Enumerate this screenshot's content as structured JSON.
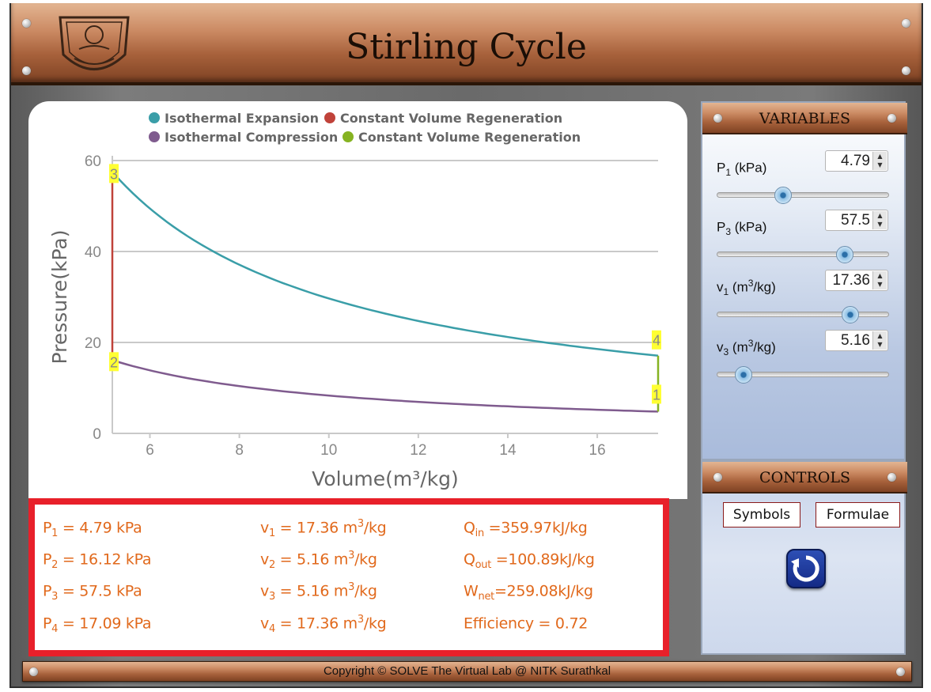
{
  "header": {
    "title": "Stirling Cycle"
  },
  "footer": {
    "copyright": "Copyright © SOLVE The Virtual Lab @ NITK Surathkal"
  },
  "variables_panel": {
    "title": "VARIABLES",
    "items": [
      {
        "sym": "P",
        "sub": "1",
        "unit_pre": " (kPa)",
        "unit_sup": "",
        "unit_post": "",
        "value": "4.79",
        "level": 0.38
      },
      {
        "sym": "P",
        "sub": "3",
        "unit_pre": " (kPa)",
        "unit_sup": "",
        "unit_post": "",
        "value": "57.5",
        "level": 0.74
      },
      {
        "sym": "v",
        "sub": "1",
        "unit_pre": " (m",
        "unit_sup": "3",
        "unit_post": "/kg)",
        "value": "17.36",
        "level": 0.77
      },
      {
        "sym": "v",
        "sub": "3",
        "unit_pre": " (m",
        "unit_sup": "3",
        "unit_post": "/kg)",
        "value": "5.16",
        "level": 0.15
      }
    ]
  },
  "controls_panel": {
    "title": "CONTROLS",
    "symbols_label": "Symbols",
    "formulae_label": "Formulae"
  },
  "results": [
    {
      "sym": "P",
      "sub": "1",
      "text": " = 4.79 kPa",
      "sup": "",
      "post": ""
    },
    {
      "sym": "P",
      "sub": "2",
      "text": " = 16.12 kPa",
      "sup": "",
      "post": ""
    },
    {
      "sym": "P",
      "sub": "3",
      "text": " = 57.5 kPa",
      "sup": "",
      "post": ""
    },
    {
      "sym": "P",
      "sub": "4",
      "text": " = 17.09 kPa",
      "sup": "",
      "post": ""
    },
    {
      "sym": "v",
      "sub": "1",
      "text": " = 17.36 m",
      "sup": "3",
      "post": "/kg"
    },
    {
      "sym": "v",
      "sub": "2",
      "text": " = 5.16 m",
      "sup": "3",
      "post": "/kg"
    },
    {
      "sym": "v",
      "sub": "3",
      "text": " = 5.16 m",
      "sup": "3",
      "post": "/kg"
    },
    {
      "sym": "v",
      "sub": "4",
      "text": " = 17.36 m",
      "sup": "3",
      "post": "/kg"
    },
    {
      "sym": "Q",
      "sub": "in",
      "text": " =359.97kJ/kg",
      "sup": "",
      "post": ""
    },
    {
      "sym": "Q",
      "sub": "out",
      "text": " =100.89kJ/kg",
      "sup": "",
      "post": ""
    },
    {
      "sym": "W",
      "sub": "net",
      "text": "=259.08kJ/kg",
      "sup": "",
      "post": ""
    },
    {
      "sym": "Efficiency",
      "sub": "",
      "text": " = 0.72",
      "sup": "",
      "post": ""
    }
  ],
  "chart_data": {
    "type": "line",
    "xlabel": "Volume(m³/kg)",
    "ylabel": "Pressure(kPa)",
    "xlim": [
      5.16,
      17.36
    ],
    "ylim": [
      0,
      60
    ],
    "x_ticks": [
      6,
      8,
      10,
      12,
      14,
      16
    ],
    "y_ticks": [
      0,
      20,
      40,
      60
    ],
    "grid": true,
    "legend": "top",
    "series": [
      {
        "name": "Isothermal Expansion",
        "color": "#3a9ea8",
        "kind": "isotherm",
        "v_start": 5.16,
        "p_start": 57.5,
        "v_end": 17.36
      },
      {
        "name": "Constant Volume Regeneration",
        "color": "#c0423a",
        "kind": "vertical",
        "v": 5.16,
        "p_from": 16.12,
        "p_to": 57.5
      },
      {
        "name": "Isothermal Compression",
        "color": "#7f5b8e",
        "kind": "isotherm",
        "v_start": 5.16,
        "p_start": 16.12,
        "v_end": 17.36
      },
      {
        "name": "Constant Volume Regeneration",
        "color": "#86b322",
        "kind": "vertical",
        "v": 17.36,
        "p_from": 4.79,
        "p_to": 17.09
      }
    ],
    "state_points": [
      {
        "label": "1",
        "v": 17.36,
        "p": 4.79
      },
      {
        "label": "2",
        "v": 5.16,
        "p": 16.12
      },
      {
        "label": "3",
        "v": 5.16,
        "p": 57.5
      },
      {
        "label": "4",
        "v": 17.36,
        "p": 17.09
      }
    ]
  }
}
